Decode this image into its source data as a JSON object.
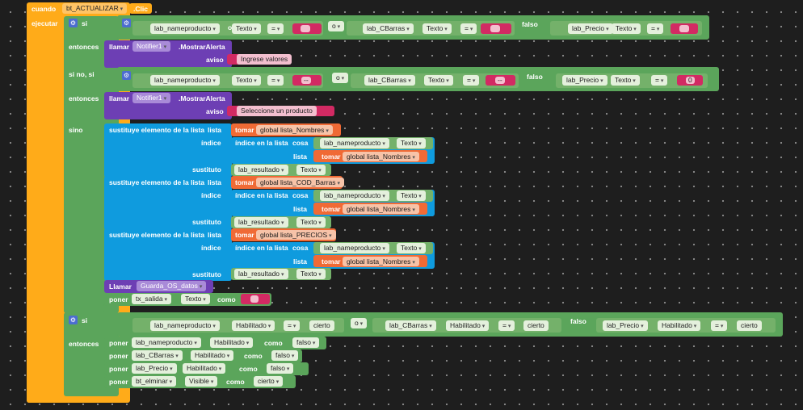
{
  "event": {
    "cuando": "cuando",
    "component": "bt_ACTUALIZAR",
    "event": ".Clic",
    "ejecutar": "ejecutar"
  },
  "kw": {
    "si": "si",
    "entonces": "entonces",
    "sino_si": "si no, si",
    "sino": "sino",
    "o": "o",
    "falso": "falso",
    "llamar": "llamar",
    "aviso": "aviso",
    "Llamar": "Llamar",
    "poner": "poner",
    "como": "como",
    "tomar": "tomar",
    "indice": "índice",
    "indice_en_lista": "índice en la lista",
    "cosa": "cosa",
    "lista": "lista",
    "sustituto": "sustituto",
    "sustituye": "sustituye elemento de la lista",
    "lista_kw": "lista",
    "eq": "=",
    "cierto": "cierto",
    "falso_val": "falso",
    "zero": "0",
    "dashes": "--"
  },
  "comps": {
    "name": "lab_nameproducto",
    "cbarras": "lab_CBarras",
    "precio": "lab_Precio",
    "resultado": "lab_resultado",
    "txsalida": "tx_salida",
    "btelim": "bt_elminar",
    "notifier": "Notifier1",
    "mostrar": ".MostrarAlerta",
    "guarda": "Guarda_OS_datos"
  },
  "props": {
    "texto": "Texto",
    "habilitado": "Habilitado",
    "visible": "Visible"
  },
  "msgs": {
    "m1": "Ingrese valores",
    "m2": "Seleccione un producto"
  },
  "globals": {
    "nombres": "global lista_Nombres",
    "cod": "global lista_COD_Barras",
    "precios": "global lista_PRECIOS"
  },
  "colors": {
    "event": "#ffab19",
    "logic": "#5ba55b",
    "text": "#d22a63",
    "list": "#0f9bde",
    "proc": "#6d3fb4",
    "var": "#f06a35"
  }
}
